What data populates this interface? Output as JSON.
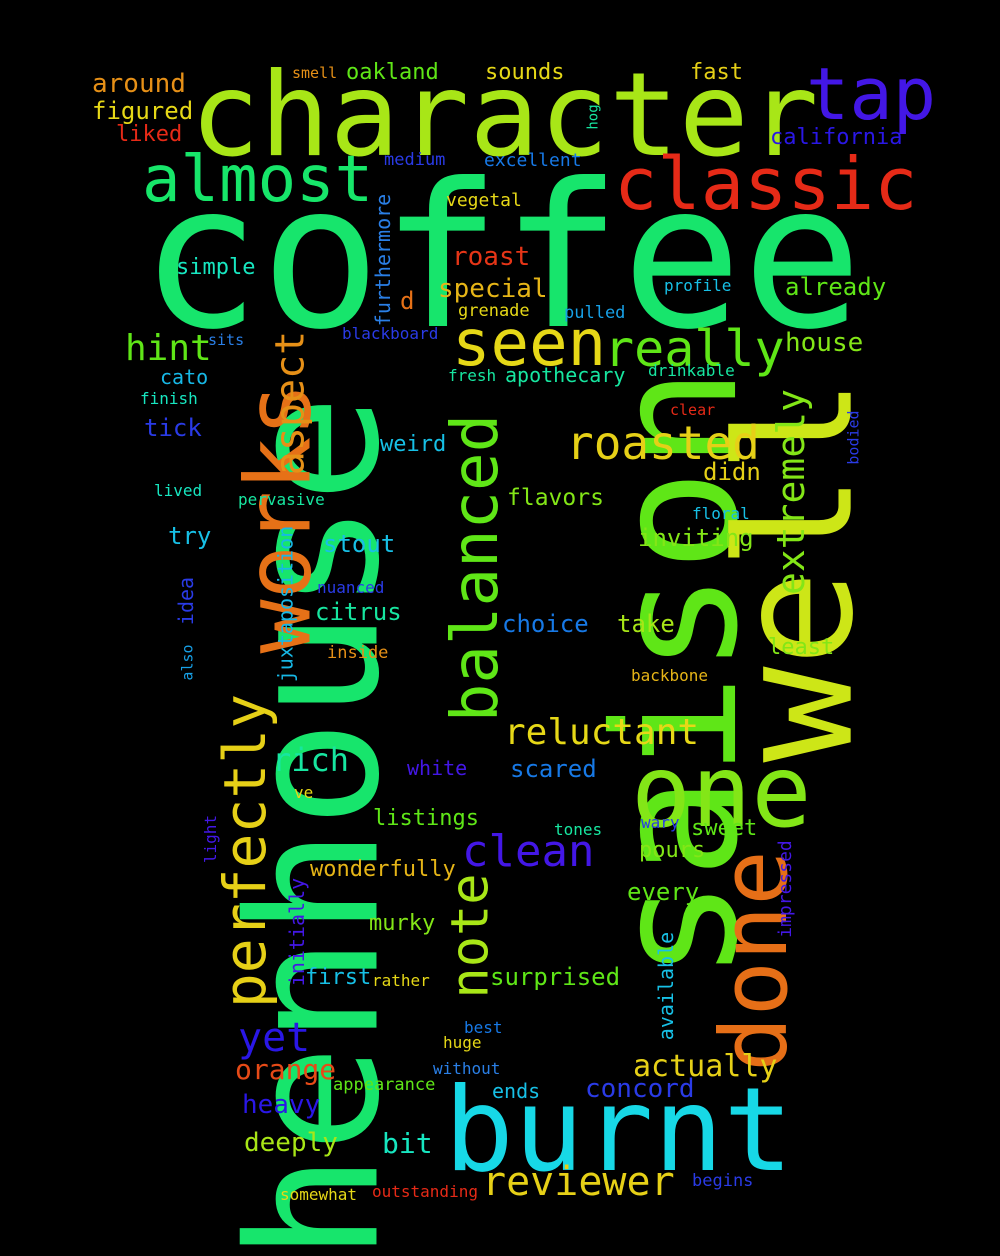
{
  "words": [
    {
      "text": "coffee",
      "color": "#17e56c"
    },
    {
      "text": "saison",
      "color": "#5fe617"
    },
    {
      "text": "henhouse",
      "color": "#17e56c"
    },
    {
      "text": "well",
      "color": "#cde617"
    },
    {
      "text": "character",
      "color": "#a8e617"
    },
    {
      "text": "burnt",
      "color": "#17d8e6"
    },
    {
      "text": "one",
      "color": "#83e617"
    },
    {
      "text": "works",
      "color": "#e67117"
    },
    {
      "text": "done",
      "color": "#e66f17"
    },
    {
      "text": "classic",
      "color": "#e62a17"
    },
    {
      "text": "tap",
      "color": "#4317e6"
    },
    {
      "text": "almost",
      "color": "#17e66a"
    },
    {
      "text": "balanced",
      "color": "#5fe617"
    },
    {
      "text": "perfectly",
      "color": "#e6d017"
    },
    {
      "text": "seen",
      "color": "#e6d817"
    },
    {
      "text": "really",
      "color": "#5fe617"
    },
    {
      "text": "roasted",
      "color": "#e6d017"
    },
    {
      "text": "note",
      "color": "#a8e617"
    },
    {
      "text": "extremely",
      "color": "#83e617"
    },
    {
      "text": "aspect",
      "color": "#e69017"
    },
    {
      "text": "clean",
      "color": "#4317e6"
    },
    {
      "text": "reviewer",
      "color": "#e6d017"
    },
    {
      "text": "reluctant",
      "color": "#e6d817"
    },
    {
      "text": "yet",
      "color": "#2a17e6"
    },
    {
      "text": "hint",
      "color": "#5fe617"
    },
    {
      "text": "rich",
      "color": "#17e6a0"
    },
    {
      "text": "orange",
      "color": "#e64a17"
    },
    {
      "text": "actually",
      "color": "#e6d017"
    },
    {
      "text": "concord",
      "color": "#2a3be6"
    },
    {
      "text": "roast",
      "color": "#e63517"
    },
    {
      "text": "special",
      "color": "#e6b517"
    },
    {
      "text": "house",
      "color": "#83e617"
    },
    {
      "text": "already",
      "color": "#5fe617"
    },
    {
      "text": "heavy",
      "color": "#2a17e6"
    },
    {
      "text": "deeply",
      "color": "#a8e617"
    },
    {
      "text": "bit",
      "color": "#17e6c0"
    },
    {
      "text": "around",
      "color": "#e69017"
    },
    {
      "text": "figured",
      "color": "#e6d817"
    },
    {
      "text": "liked",
      "color": "#e62a17"
    },
    {
      "text": "oakland",
      "color": "#5fe617"
    },
    {
      "text": "sounds",
      "color": "#e6d817"
    },
    {
      "text": "fast",
      "color": "#e6d017"
    },
    {
      "text": "california",
      "color": "#2a17e6"
    },
    {
      "text": "excellent",
      "color": "#1779e6"
    },
    {
      "text": "medium",
      "color": "#2a3be6"
    },
    {
      "text": "smell",
      "color": "#e69017"
    },
    {
      "text": "hog",
      "color": "#17e6a0"
    },
    {
      "text": "vegetal",
      "color": "#e6d817"
    },
    {
      "text": "simple",
      "color": "#17e6c0"
    },
    {
      "text": "furthermore",
      "color": "#2a7fe6"
    },
    {
      "text": "d",
      "color": "#e67117"
    },
    {
      "text": "grenade",
      "color": "#e6d817"
    },
    {
      "text": "pulled",
      "color": "#17a0e6"
    },
    {
      "text": "profile",
      "color": "#17c0e6"
    },
    {
      "text": "blackboard",
      "color": "#2a3be6"
    },
    {
      "text": "sits",
      "color": "#2a7fe6"
    },
    {
      "text": "cato",
      "color": "#17b8e6"
    },
    {
      "text": "apothecary",
      "color": "#17e6a0"
    },
    {
      "text": "fresh",
      "color": "#17e6a0"
    },
    {
      "text": "drinkable",
      "color": "#17e6a0"
    },
    {
      "text": "finish",
      "color": "#17e6c0"
    },
    {
      "text": "clear",
      "color": "#e62a17"
    },
    {
      "text": "tick",
      "color": "#2a3be6"
    },
    {
      "text": "bodied",
      "color": "#2a3be6"
    },
    {
      "text": "weird",
      "color": "#17c0e6"
    },
    {
      "text": "didn",
      "color": "#e6d017"
    },
    {
      "text": "lived",
      "color": "#17e6c0"
    },
    {
      "text": "pervasive",
      "color": "#17e6a0"
    },
    {
      "text": "flavors",
      "color": "#83e617"
    },
    {
      "text": "floral",
      "color": "#17c0e6"
    },
    {
      "text": "juxtaposition",
      "color": "#17b8e6"
    },
    {
      "text": "try",
      "color": "#17c0e6"
    },
    {
      "text": "inviting",
      "color": "#83e617"
    },
    {
      "text": "stout",
      "color": "#17c0e6"
    },
    {
      "text": "idea",
      "color": "#2a3be6"
    },
    {
      "text": "nuanced",
      "color": "#2a3be6"
    },
    {
      "text": "citrus",
      "color": "#17e6a0"
    },
    {
      "text": "choice",
      "color": "#1779e6"
    },
    {
      "text": "take",
      "color": "#a8e617"
    },
    {
      "text": "also",
      "color": "#17a0e6"
    },
    {
      "text": "inside",
      "color": "#e69017"
    },
    {
      "text": "least",
      "color": "#83e617"
    },
    {
      "text": "backbone",
      "color": "#e6b517"
    },
    {
      "text": "white",
      "color": "#4317e6"
    },
    {
      "text": "scared",
      "color": "#1779e6"
    },
    {
      "text": "ve",
      "color": "#e6d817"
    },
    {
      "text": "listings",
      "color": "#5fe617"
    },
    {
      "text": "tones",
      "color": "#17e6a0"
    },
    {
      "text": "wary",
      "color": "#2a3be6"
    },
    {
      "text": "sweet",
      "color": "#5fe617"
    },
    {
      "text": "light",
      "color": "#4317e6"
    },
    {
      "text": "pours",
      "color": "#83e617"
    },
    {
      "text": "impressed",
      "color": "#4317e6"
    },
    {
      "text": "wonderfully",
      "color": "#e6b517"
    },
    {
      "text": "initially",
      "color": "#4317e6"
    },
    {
      "text": "every",
      "color": "#5fe617"
    },
    {
      "text": "murky",
      "color": "#83e617"
    },
    {
      "text": "available",
      "color": "#17c0e6"
    },
    {
      "text": "first",
      "color": "#17c0e6"
    },
    {
      "text": "rather",
      "color": "#e6d817"
    },
    {
      "text": "surprised",
      "color": "#5fe617"
    },
    {
      "text": "best",
      "color": "#1779e6"
    },
    {
      "text": "huge",
      "color": "#e6d817"
    },
    {
      "text": "without",
      "color": "#2a7fe6"
    },
    {
      "text": "appearance",
      "color": "#5fe617"
    },
    {
      "text": "ends",
      "color": "#17c0e6"
    },
    {
      "text": "somewhat",
      "color": "#e6d817"
    },
    {
      "text": "outstanding",
      "color": "#e62a17"
    },
    {
      "text": "begins",
      "color": "#2a3be6"
    }
  ]
}
